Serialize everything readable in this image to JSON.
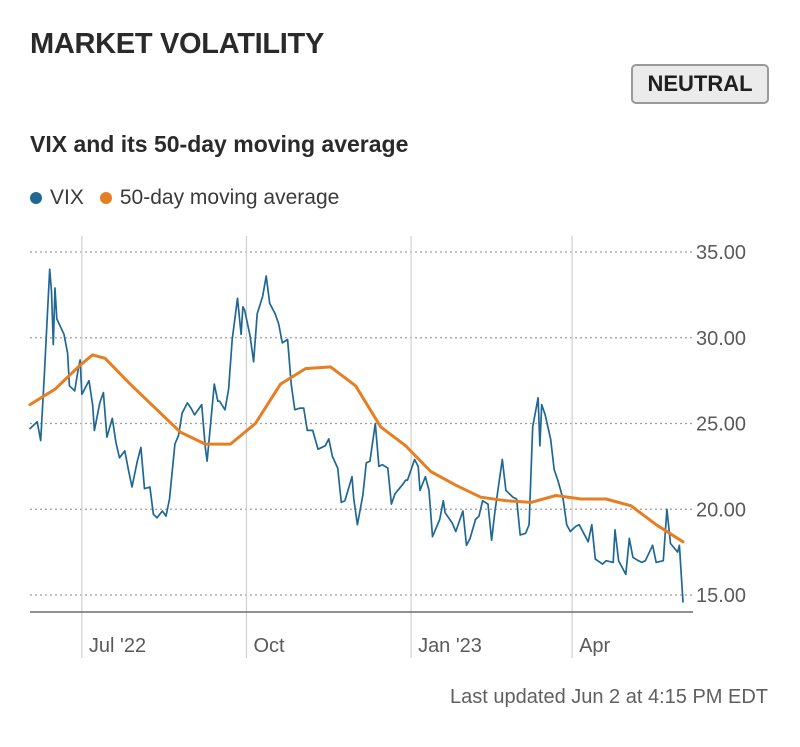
{
  "header": {
    "title": "MARKET VOLATILITY",
    "status_badge": "NEUTRAL"
  },
  "legend": {
    "vix_label": "VIX",
    "ma_label": "50-day moving average"
  },
  "footer": {
    "updated": "Last updated Jun 2 at 4:15 PM EDT"
  },
  "colors": {
    "vix": "#1f6896",
    "ma": "#e67e22",
    "grid": "#9f9f9f"
  },
  "chart_data": {
    "type": "line",
    "title": "VIX and its 50-day moving average",
    "xlabel": "",
    "ylabel": "",
    "ylim": [
      14.5,
      35.5
    ],
    "yticks": [
      15,
      20,
      25,
      30,
      35
    ],
    "ytick_labels": [
      "15.00",
      "20.00",
      "25.00",
      "30.00",
      "35.00"
    ],
    "x_range": [
      "2022-06-02",
      "2023-06-02"
    ],
    "xticks": [
      {
        "date": "2022-07-01",
        "label": "Jul '22"
      },
      {
        "date": "2022-10-01",
        "label": "Oct"
      },
      {
        "date": "2023-01-01",
        "label": "Jan '23"
      },
      {
        "date": "2023-04-01",
        "label": "Apr"
      }
    ],
    "grid": true,
    "legend_placement": "top-left",
    "series": [
      {
        "name": "VIX",
        "points": [
          [
            "2022-06-02",
            24.7
          ],
          [
            "2022-06-06",
            25.1
          ],
          [
            "2022-06-08",
            24.0
          ],
          [
            "2022-06-10",
            27.8
          ],
          [
            "2022-06-13",
            34.0
          ],
          [
            "2022-06-14",
            32.7
          ],
          [
            "2022-06-15",
            29.6
          ],
          [
            "2022-06-16",
            32.9
          ],
          [
            "2022-06-17",
            31.1
          ],
          [
            "2022-06-21",
            30.2
          ],
          [
            "2022-06-23",
            29.1
          ],
          [
            "2022-06-24",
            27.2
          ],
          [
            "2022-06-27",
            26.9
          ],
          [
            "2022-06-29",
            28.2
          ],
          [
            "2022-06-30",
            28.7
          ],
          [
            "2022-07-01",
            26.7
          ],
          [
            "2022-07-05",
            27.5
          ],
          [
            "2022-07-07",
            26.1
          ],
          [
            "2022-07-08",
            24.6
          ],
          [
            "2022-07-11",
            26.2
          ],
          [
            "2022-07-13",
            26.8
          ],
          [
            "2022-07-15",
            24.2
          ],
          [
            "2022-07-18",
            25.3
          ],
          [
            "2022-07-20",
            23.9
          ],
          [
            "2022-07-22",
            23.0
          ],
          [
            "2022-07-25",
            23.4
          ],
          [
            "2022-07-27",
            22.3
          ],
          [
            "2022-07-29",
            21.3
          ],
          [
            "2022-08-01",
            22.8
          ],
          [
            "2022-08-03",
            23.6
          ],
          [
            "2022-08-05",
            21.2
          ],
          [
            "2022-08-08",
            21.3
          ],
          [
            "2022-08-10",
            19.7
          ],
          [
            "2022-08-12",
            19.5
          ],
          [
            "2022-08-15",
            19.9
          ],
          [
            "2022-08-17",
            19.6
          ],
          [
            "2022-08-19",
            20.6
          ],
          [
            "2022-08-22",
            23.8
          ],
          [
            "2022-08-24",
            24.3
          ],
          [
            "2022-08-26",
            25.6
          ],
          [
            "2022-08-29",
            26.2
          ],
          [
            "2022-08-31",
            25.9
          ],
          [
            "2022-09-02",
            25.5
          ],
          [
            "2022-09-06",
            26.1
          ],
          [
            "2022-09-08",
            23.6
          ],
          [
            "2022-09-09",
            22.8
          ],
          [
            "2022-09-13",
            27.3
          ],
          [
            "2022-09-15",
            26.3
          ],
          [
            "2022-09-16",
            26.3
          ],
          [
            "2022-09-19",
            25.8
          ],
          [
            "2022-09-21",
            27.0
          ],
          [
            "2022-09-23",
            29.9
          ],
          [
            "2022-09-26",
            32.3
          ],
          [
            "2022-09-28",
            30.2
          ],
          [
            "2022-09-29",
            31.8
          ],
          [
            "2022-09-30",
            31.6
          ],
          [
            "2022-10-03",
            30.1
          ],
          [
            "2022-10-05",
            28.6
          ],
          [
            "2022-10-07",
            31.4
          ],
          [
            "2022-10-10",
            32.4
          ],
          [
            "2022-10-12",
            33.6
          ],
          [
            "2022-10-14",
            32.0
          ],
          [
            "2022-10-17",
            31.4
          ],
          [
            "2022-10-19",
            30.8
          ],
          [
            "2022-10-21",
            29.7
          ],
          [
            "2022-10-24",
            29.9
          ],
          [
            "2022-10-26",
            27.3
          ],
          [
            "2022-10-28",
            25.8
          ],
          [
            "2022-10-31",
            25.9
          ],
          [
            "2022-11-02",
            25.9
          ],
          [
            "2022-11-04",
            24.6
          ],
          [
            "2022-11-07",
            24.6
          ],
          [
            "2022-11-10",
            23.5
          ],
          [
            "2022-11-14",
            23.7
          ],
          [
            "2022-11-16",
            24.1
          ],
          [
            "2022-11-18",
            23.1
          ],
          [
            "2022-11-21",
            22.4
          ],
          [
            "2022-11-23",
            20.4
          ],
          [
            "2022-11-25",
            20.5
          ],
          [
            "2022-11-29",
            21.9
          ],
          [
            "2022-11-30",
            20.6
          ],
          [
            "2022-12-02",
            19.1
          ],
          [
            "2022-12-05",
            20.8
          ],
          [
            "2022-12-07",
            22.7
          ],
          [
            "2022-12-09",
            22.8
          ],
          [
            "2022-12-12",
            25.0
          ],
          [
            "2022-12-14",
            22.5
          ],
          [
            "2022-12-16",
            22.6
          ],
          [
            "2022-12-19",
            22.4
          ],
          [
            "2022-12-21",
            20.3
          ],
          [
            "2022-12-23",
            20.9
          ],
          [
            "2022-12-27",
            21.4
          ],
          [
            "2022-12-29",
            21.7
          ],
          [
            "2022-12-30",
            21.7
          ],
          [
            "2023-01-03",
            22.9
          ],
          [
            "2023-01-05",
            22.5
          ],
          [
            "2023-01-06",
            21.1
          ],
          [
            "2023-01-09",
            21.9
          ],
          [
            "2023-01-11",
            21.1
          ],
          [
            "2023-01-13",
            18.4
          ],
          [
            "2023-01-17",
            19.4
          ],
          [
            "2023-01-19",
            20.5
          ],
          [
            "2023-01-20",
            19.8
          ],
          [
            "2023-01-24",
            19.2
          ],
          [
            "2023-01-26",
            18.7
          ],
          [
            "2023-01-30",
            19.9
          ],
          [
            "2023-02-01",
            17.9
          ],
          [
            "2023-02-03",
            18.3
          ],
          [
            "2023-02-06",
            19.4
          ],
          [
            "2023-02-08",
            19.6
          ],
          [
            "2023-02-10",
            20.5
          ],
          [
            "2023-02-13",
            20.3
          ],
          [
            "2023-02-15",
            18.2
          ],
          [
            "2023-02-17",
            20.0
          ],
          [
            "2023-02-21",
            22.9
          ],
          [
            "2023-02-23",
            21.1
          ],
          [
            "2023-02-27",
            20.7
          ],
          [
            "2023-03-01",
            20.6
          ],
          [
            "2023-03-03",
            18.5
          ],
          [
            "2023-03-06",
            18.6
          ],
          [
            "2023-03-08",
            19.1
          ],
          [
            "2023-03-10",
            24.8
          ],
          [
            "2023-03-13",
            26.5
          ],
          [
            "2023-03-14",
            23.7
          ],
          [
            "2023-03-15",
            26.1
          ],
          [
            "2023-03-17",
            25.5
          ],
          [
            "2023-03-20",
            24.1
          ],
          [
            "2023-03-22",
            22.3
          ],
          [
            "2023-03-24",
            21.7
          ],
          [
            "2023-03-27",
            20.6
          ],
          [
            "2023-03-29",
            19.1
          ],
          [
            "2023-03-31",
            18.7
          ],
          [
            "2023-04-03",
            19.0
          ],
          [
            "2023-04-05",
            19.1
          ],
          [
            "2023-04-10",
            18.1
          ],
          [
            "2023-04-12",
            19.1
          ],
          [
            "2023-04-14",
            17.1
          ],
          [
            "2023-04-18",
            16.8
          ],
          [
            "2023-04-20",
            17.0
          ],
          [
            "2023-04-24",
            16.9
          ],
          [
            "2023-04-25",
            18.8
          ],
          [
            "2023-04-27",
            17.0
          ],
          [
            "2023-05-01",
            16.2
          ],
          [
            "2023-05-03",
            18.3
          ],
          [
            "2023-05-05",
            17.2
          ],
          [
            "2023-05-08",
            17.0
          ],
          [
            "2023-05-10",
            16.9
          ],
          [
            "2023-05-12",
            17.0
          ],
          [
            "2023-05-16",
            17.9
          ],
          [
            "2023-05-18",
            16.9
          ],
          [
            "2023-05-22",
            17.0
          ],
          [
            "2023-05-24",
            20.0
          ],
          [
            "2023-05-26",
            18.0
          ],
          [
            "2023-05-30",
            17.5
          ],
          [
            "2023-05-31",
            17.9
          ],
          [
            "2023-06-02",
            14.6
          ]
        ]
      },
      {
        "name": "50-day moving average",
        "points": [
          [
            "2022-06-02",
            26.1
          ],
          [
            "2022-06-16",
            27.0
          ],
          [
            "2022-06-30",
            28.4
          ],
          [
            "2022-07-07",
            29.0
          ],
          [
            "2022-07-14",
            28.8
          ],
          [
            "2022-07-28",
            27.3
          ],
          [
            "2022-08-11",
            25.9
          ],
          [
            "2022-08-25",
            24.5
          ],
          [
            "2022-09-08",
            23.8
          ],
          [
            "2022-09-22",
            23.8
          ],
          [
            "2022-10-06",
            25.0
          ],
          [
            "2022-10-20",
            27.3
          ],
          [
            "2022-11-03",
            28.2
          ],
          [
            "2022-11-17",
            28.3
          ],
          [
            "2022-12-01",
            27.2
          ],
          [
            "2022-12-15",
            24.8
          ],
          [
            "2022-12-29",
            23.7
          ],
          [
            "2023-01-12",
            22.2
          ],
          [
            "2023-01-26",
            21.4
          ],
          [
            "2023-02-09",
            20.7
          ],
          [
            "2023-02-23",
            20.5
          ],
          [
            "2023-03-09",
            20.4
          ],
          [
            "2023-03-23",
            20.8
          ],
          [
            "2023-04-06",
            20.6
          ],
          [
            "2023-04-20",
            20.6
          ],
          [
            "2023-05-04",
            20.2
          ],
          [
            "2023-05-18",
            19.1
          ],
          [
            "2023-06-02",
            18.1
          ]
        ]
      }
    ]
  }
}
